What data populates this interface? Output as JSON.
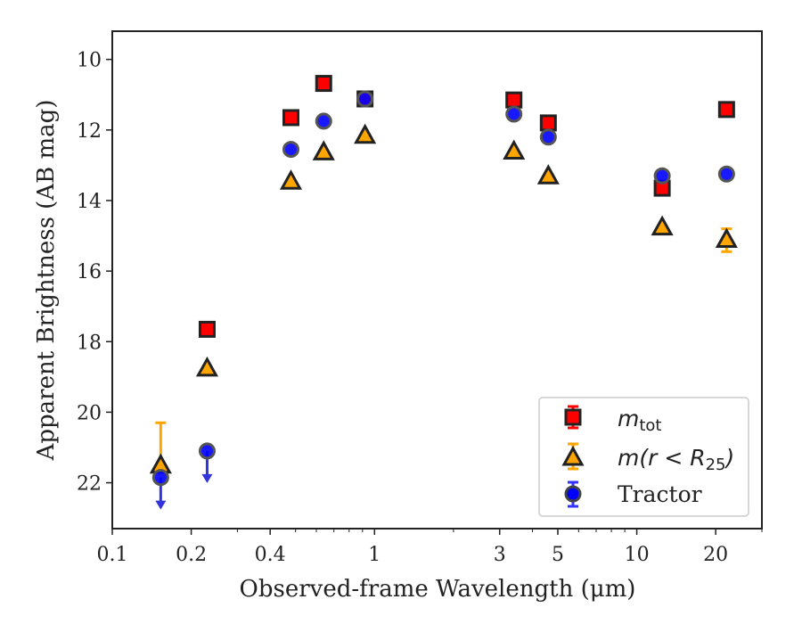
{
  "chart_data": {
    "type": "scatter",
    "xlabel": "Observed-frame Wavelength (μm)",
    "ylabel": "Apparent Brightness (AB mag)",
    "xscale": "log",
    "xlim": [
      0.1,
      30
    ],
    "ylim": [
      23.3,
      9.2
    ],
    "y_inverted": true,
    "x_ticks": [
      {
        "value": 0.1,
        "label": "0.1"
      },
      {
        "value": 0.2,
        "label": "0.2"
      },
      {
        "value": 0.4,
        "label": "0.4"
      },
      {
        "value": 1,
        "label": "1"
      },
      {
        "value": 3,
        "label": "3"
      },
      {
        "value": 5,
        "label": "5"
      },
      {
        "value": 10,
        "label": "10"
      },
      {
        "value": 20,
        "label": "20"
      }
    ],
    "y_ticks": [
      10,
      12,
      14,
      16,
      18,
      20,
      22
    ],
    "grid": false,
    "legend_position": "lower-right",
    "series": [
      {
        "key": "mtot",
        "name": "m_tot",
        "marker": "square",
        "color": "#ff0000",
        "edge": "#222222",
        "points": [
          {
            "x": 0.23,
            "y": 17.65
          },
          {
            "x": 0.48,
            "y": 11.65
          },
          {
            "x": 0.64,
            "y": 10.68
          },
          {
            "x": 0.92,
            "y": 11.12
          },
          {
            "x": 3.4,
            "y": 11.15
          },
          {
            "x": 4.6,
            "y": 11.8
          },
          {
            "x": 12.5,
            "y": 13.65
          },
          {
            "x": 22.0,
            "y": 11.42
          }
        ]
      },
      {
        "key": "mr25",
        "name": "m(r < R25)",
        "marker": "triangle",
        "color": "#ffa500",
        "edge": "#222222",
        "points": [
          {
            "x": 0.153,
            "y": 21.5,
            "yerr_low": 20.3,
            "yerr_high": 21.5
          },
          {
            "x": 0.23,
            "y": 18.75
          },
          {
            "x": 0.48,
            "y": 13.45
          },
          {
            "x": 0.64,
            "y": 12.62
          },
          {
            "x": 0.92,
            "y": 12.15
          },
          {
            "x": 3.4,
            "y": 12.6
          },
          {
            "x": 4.6,
            "y": 13.3
          },
          {
            "x": 12.5,
            "y": 14.75
          },
          {
            "x": 22.0,
            "y": 15.1,
            "yerr_low": 14.8,
            "yerr_high": 15.45
          }
        ]
      },
      {
        "key": "tractor",
        "name": "Tractor",
        "marker": "circle",
        "color": "#0000ff",
        "edge": "#444444",
        "points": [
          {
            "x": 0.153,
            "y": 21.85,
            "upper_limit": true
          },
          {
            "x": 0.23,
            "y": 21.1,
            "upper_limit": true
          },
          {
            "x": 0.48,
            "y": 12.55
          },
          {
            "x": 0.64,
            "y": 11.75
          },
          {
            "x": 0.92,
            "y": 11.12
          },
          {
            "x": 3.4,
            "y": 11.55
          },
          {
            "x": 4.6,
            "y": 12.2
          },
          {
            "x": 12.5,
            "y": 13.3
          },
          {
            "x": 22.0,
            "y": 13.25
          }
        ]
      }
    ]
  },
  "legend": {
    "mtot": {
      "main": "m",
      "sub": "tot"
    },
    "mr25": {
      "main": "m(r < R",
      "sub": "25",
      "tail": ")"
    },
    "tractor": {
      "main": "Tractor"
    }
  }
}
